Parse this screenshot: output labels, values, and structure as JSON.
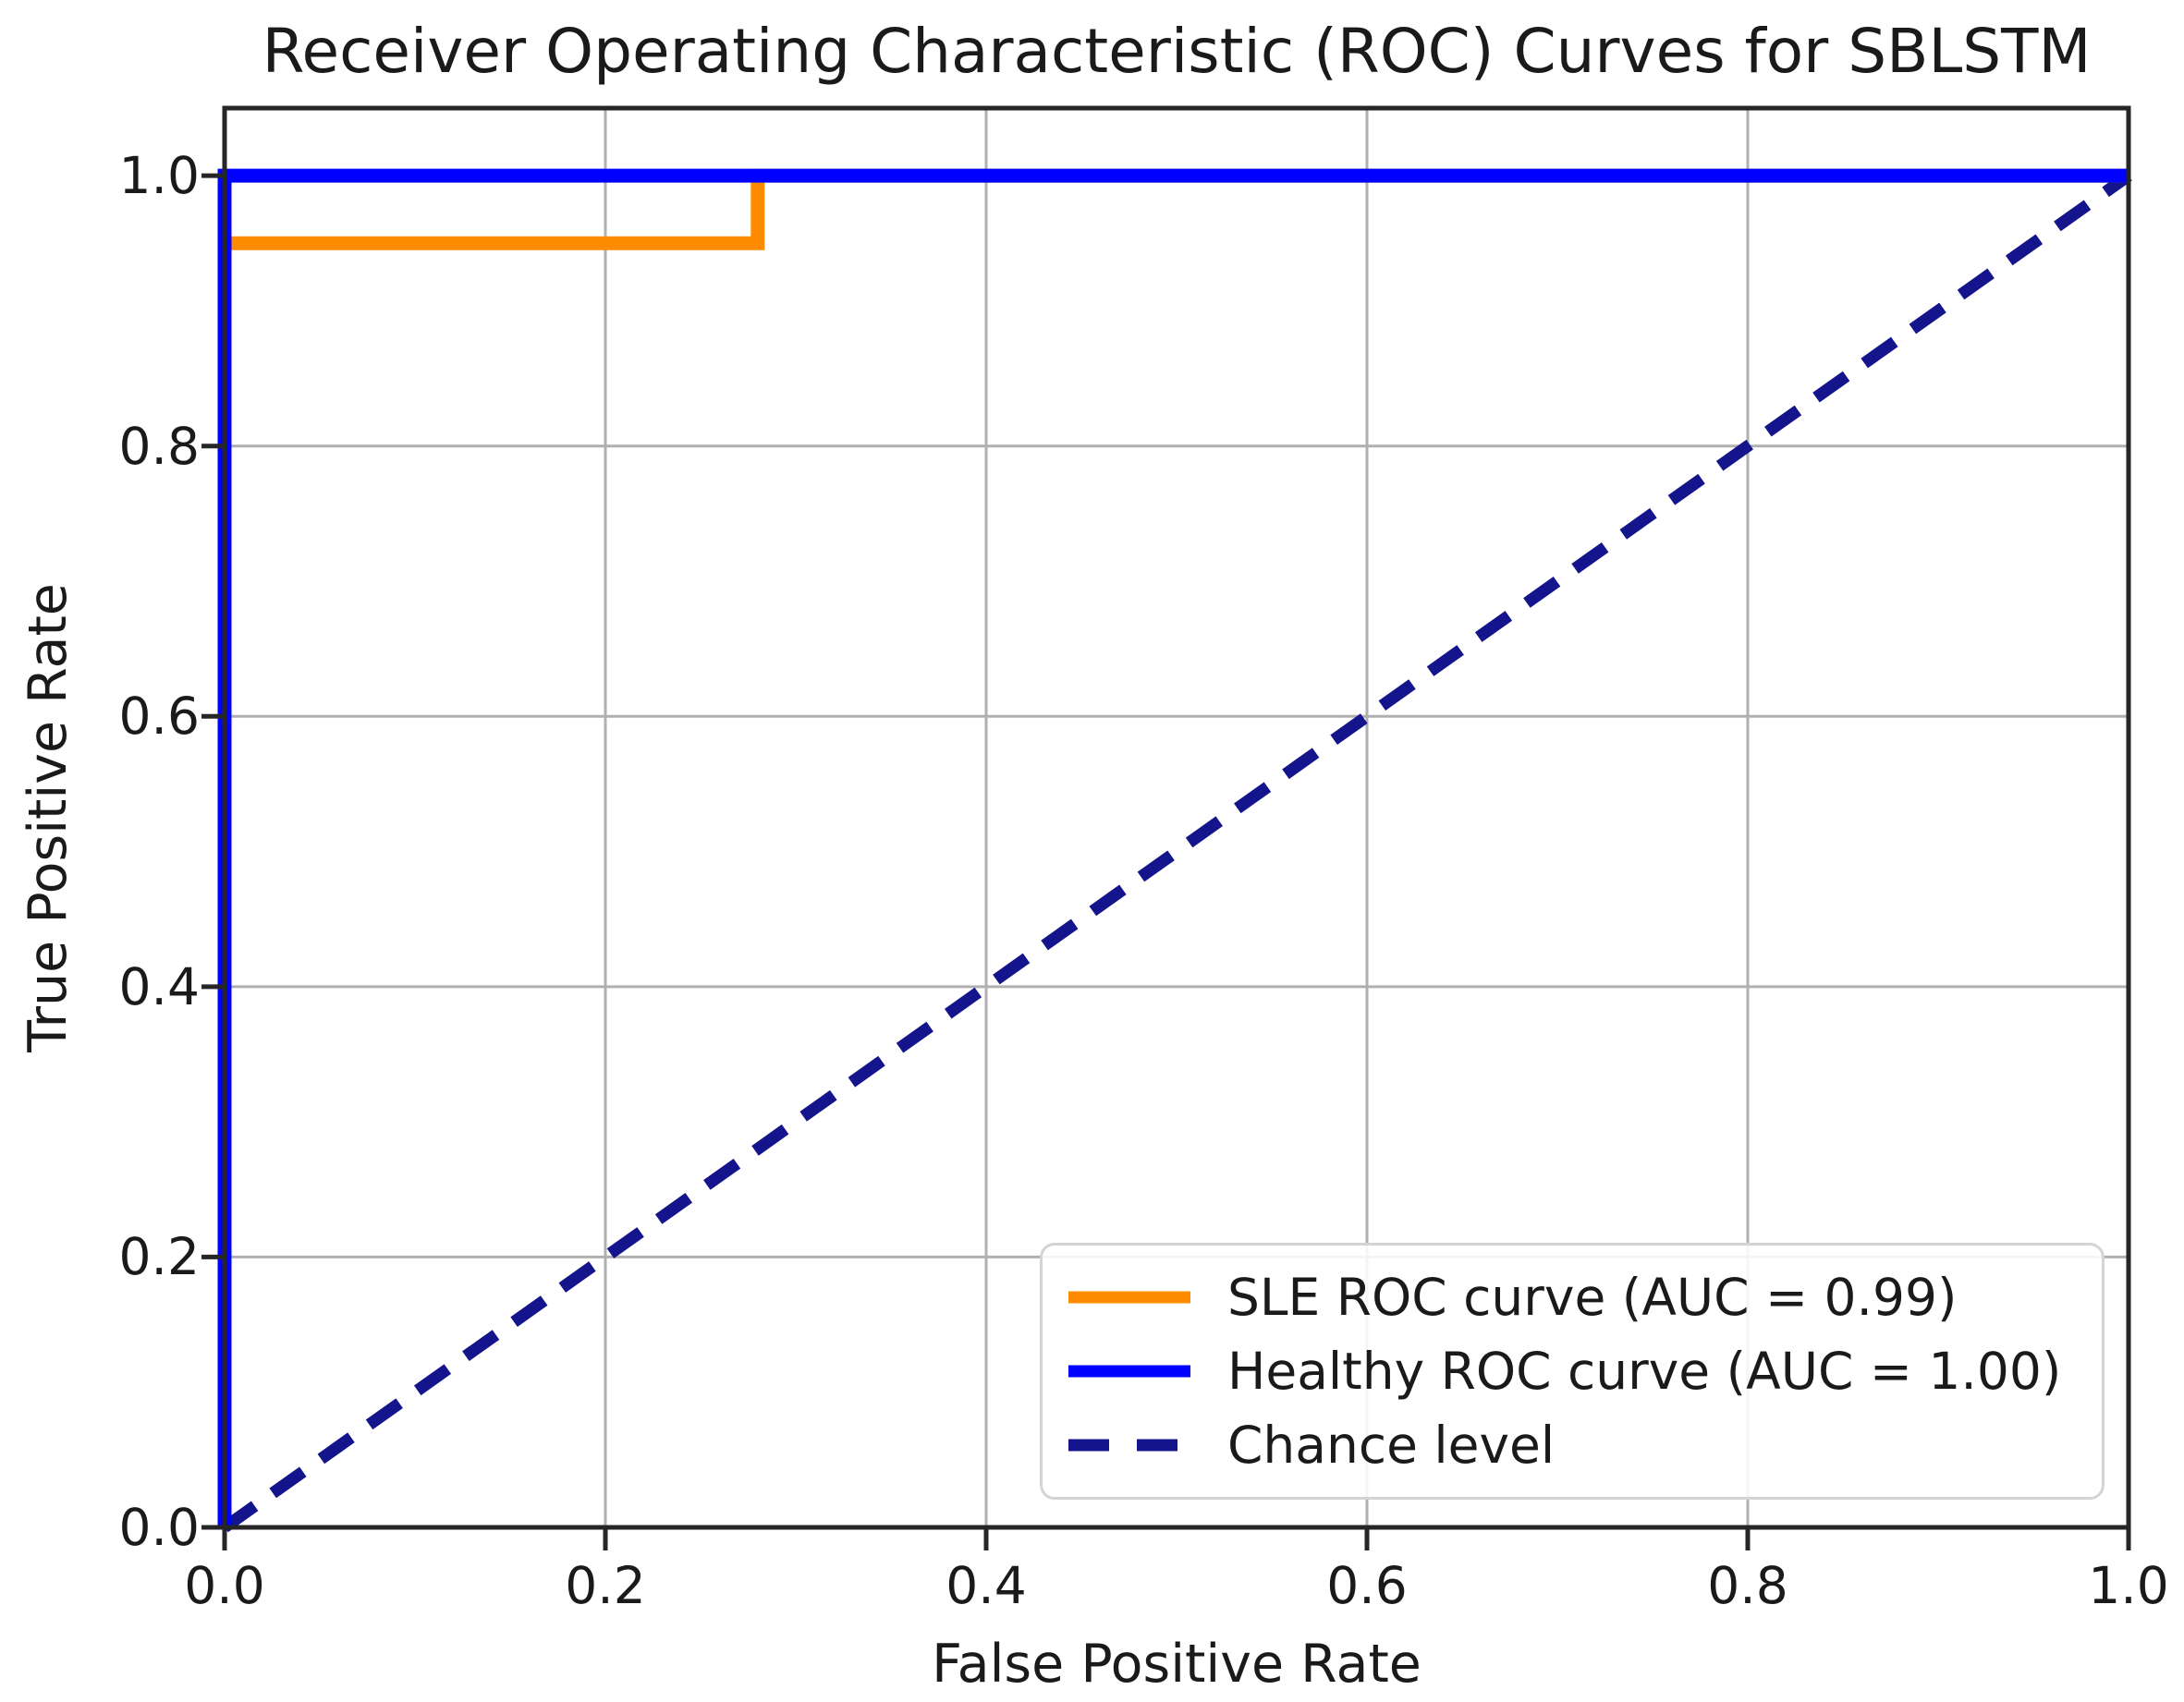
{
  "chart_data": {
    "type": "line",
    "title": "Receiver Operating Characteristic (ROC) Curves for SBLSTM",
    "xlabel": "False Positive Rate",
    "ylabel": "True Positive Rate",
    "xlim": [
      0.0,
      1.0
    ],
    "ylim": [
      0.0,
      1.05
    ],
    "xticks": [
      0.0,
      0.2,
      0.4,
      0.6,
      0.8,
      1.0
    ],
    "yticks": [
      0.0,
      0.2,
      0.4,
      0.6,
      0.8,
      1.0
    ],
    "xtick_labels": [
      "0.0",
      "0.2",
      "0.4",
      "0.6",
      "0.8",
      "1.0"
    ],
    "ytick_labels": [
      "0.0",
      "0.2",
      "0.4",
      "0.6",
      "0.8",
      "1.0"
    ],
    "grid": true,
    "grid_color": "#b0b0b0",
    "axis_color": "#262626",
    "legend_position": "lower right",
    "series": [
      {
        "name": "SLE ROC curve (AUC = 0.99)",
        "color": "#FF8C00",
        "style": "solid",
        "zorder": 2,
        "points": [
          [
            0.0,
            0.0
          ],
          [
            0.0,
            0.95
          ],
          [
            0.28,
            0.95
          ],
          [
            0.28,
            1.0
          ],
          [
            1.0,
            1.0
          ]
        ]
      },
      {
        "name": "Healthy ROC curve (AUC = 1.00)",
        "color": "#0000FF",
        "style": "solid",
        "zorder": 3,
        "points": [
          [
            0.0,
            0.0
          ],
          [
            0.0,
            1.0
          ],
          [
            1.0,
            1.0
          ]
        ]
      },
      {
        "name": "Chance level",
        "color": "#14148C",
        "style": "dashed",
        "zorder": 1,
        "points": [
          [
            0.0,
            0.0
          ],
          [
            1.0,
            1.0
          ]
        ]
      }
    ]
  }
}
